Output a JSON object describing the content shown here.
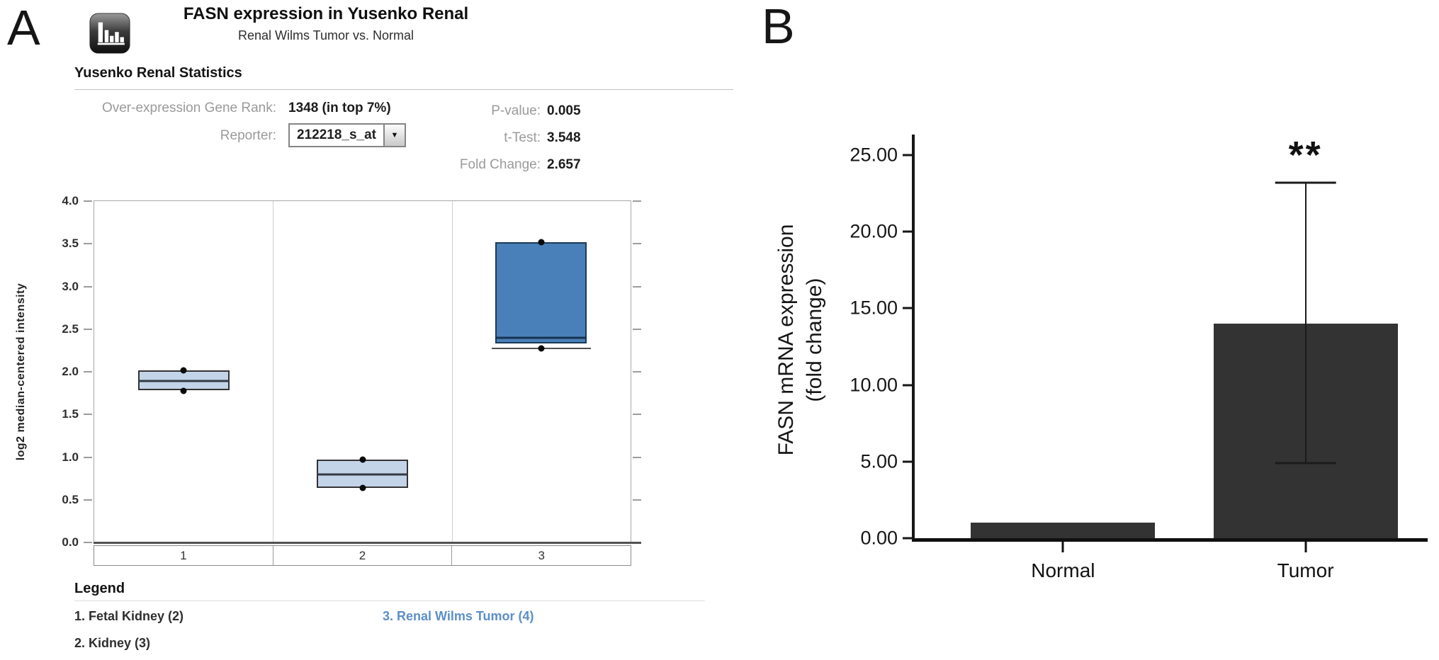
{
  "colors": {
    "legend_link": "#5c8fc7",
    "stat_label_gray": "#9a9a9a",
    "box_light_fill": "#c3d4e9",
    "box_dark_fill": "#4a80b9",
    "bar_dark": "#333333"
  },
  "panelA": {
    "label": "A",
    "title": "FASN expression in Yusenko Renal",
    "subtitle": "Renal Wilms Tumor vs. Normal",
    "stats_header": "Yusenko Renal Statistics",
    "stats": {
      "gene_rank_label": "Over-expression Gene Rank:",
      "gene_rank_value": "1348 (in top 7%)",
      "reporter_label": "Reporter:",
      "reporter_value": "212218_s_at",
      "p_value_label": "P-value:",
      "p_value": "0.005",
      "t_test_label": "t-Test:",
      "t_test": "3.548",
      "fold_change_label": "Fold Change:",
      "fold_change": "2.657"
    },
    "legend": {
      "header": "Legend",
      "items": [
        {
          "label": "1. Fetal Kidney (2)"
        },
        {
          "label": "2. Kidney (3)"
        },
        {
          "label": "3. Renal Wilms Tumor (4)"
        }
      ]
    }
  },
  "panelB": {
    "label": "B"
  },
  "chart_data": [
    {
      "type": "box",
      "title": "FASN expression in Yusenko Renal",
      "subtitle": "Renal Wilms Tumor vs. Normal",
      "ylabel": "log2 median-centered intensity",
      "ylim": [
        0.0,
        4.0
      ],
      "yticks": [
        {
          "v": 4.0,
          "label": "4.0"
        },
        {
          "v": 3.5,
          "label": "3.5"
        },
        {
          "v": 3.0,
          "label": "3.0"
        },
        {
          "v": 2.5,
          "label": "2.5"
        },
        {
          "v": 2.0,
          "label": "2.0"
        },
        {
          "v": 1.5,
          "label": "1.5"
        },
        {
          "v": 1.0,
          "label": "1.0"
        },
        {
          "v": 0.5,
          "label": "0.5"
        },
        {
          "v": 0.0,
          "label": "0.0"
        }
      ],
      "categories": [
        "1",
        "2",
        "3"
      ],
      "groups": [
        {
          "category": "1",
          "name": "Fetal Kidney",
          "n": 2,
          "q1": 1.78,
          "median": 1.89,
          "q3": 2.02,
          "points": [
            2.02,
            1.78
          ],
          "fill": "#c3d4e9",
          "border": "#333333",
          "median_color": "#333a45"
        },
        {
          "category": "2",
          "name": "Kidney",
          "n": 3,
          "q1": 0.64,
          "median": 0.8,
          "q3": 0.97,
          "points": [
            0.97,
            0.64
          ],
          "fill": "#c3d4e9",
          "border": "#333333",
          "median_color": "#333a45"
        },
        {
          "category": "3",
          "name": "Renal Wilms Tumor",
          "n": 4,
          "q1": 2.33,
          "median": 2.4,
          "q3": 3.52,
          "low_line": 2.27,
          "points": [
            3.52,
            2.27
          ],
          "fill": "#4a80b9",
          "border": "#1c3a57",
          "median_color": "#16334f"
        }
      ],
      "grid": false,
      "legend_position": "below"
    },
    {
      "type": "bar",
      "categories": [
        "Normal",
        "Tumor"
      ],
      "values": [
        1.0,
        14.0
      ],
      "errors": [
        null,
        {
          "low": 4.9,
          "high": 23.2
        }
      ],
      "annotations": [
        null,
        "**"
      ],
      "ylabel_line1": "FASN mRNA expression",
      "ylabel_line2": "(fold change)",
      "ylim": [
        0,
        26.2
      ],
      "yticks": [
        {
          "v": 25,
          "label": "25.00"
        },
        {
          "v": 20,
          "label": "20.00"
        },
        {
          "v": 15,
          "label": "15.00"
        },
        {
          "v": 10,
          "label": "10.00"
        },
        {
          "v": 5,
          "label": "5.00"
        },
        {
          "v": 0,
          "label": "0.00"
        }
      ],
      "bar_color": "#333333",
      "bar_centers_pct": [
        29,
        76.4
      ],
      "bar_width_pct": 36,
      "grid": false
    }
  ]
}
